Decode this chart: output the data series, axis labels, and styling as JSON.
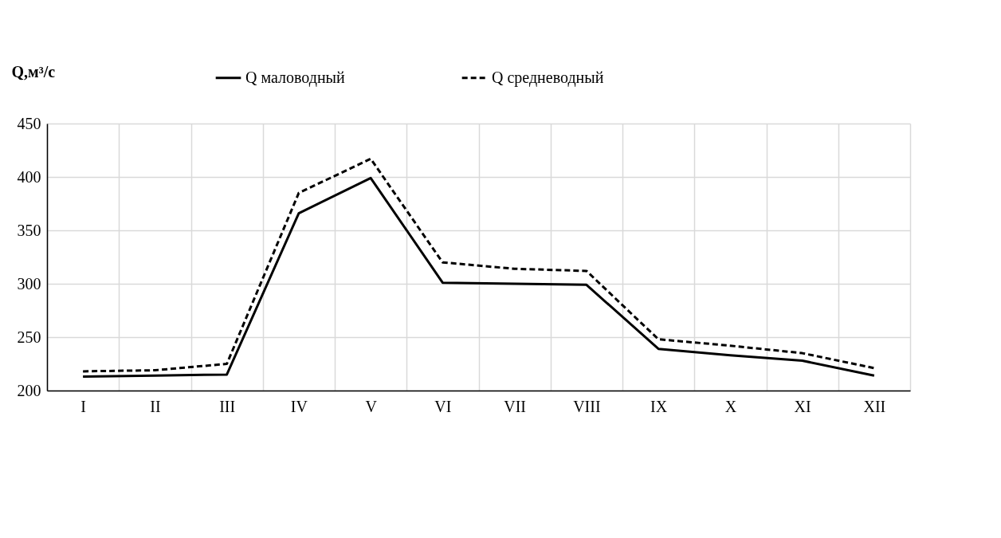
{
  "chart_data": {
    "type": "line",
    "ylabel": "Q,м³/с",
    "categories": [
      "I",
      "II",
      "III",
      "IV",
      "V",
      "VI",
      "VII",
      "VIII",
      "IX",
      "X",
      "XI",
      "XII"
    ],
    "series": [
      {
        "name": "Q маловодный",
        "color": "#000000",
        "line_style": "solid",
        "values": [
          213,
          214,
          215,
          366,
          399,
          301,
          300,
          299,
          239,
          233,
          228,
          214
        ]
      },
      {
        "name": "Q средневодный",
        "color": "#000000",
        "line_style": "dashed",
        "values": [
          218,
          219,
          225,
          385,
          417,
          320,
          314,
          312,
          248,
          242,
          235,
          221
        ]
      }
    ],
    "ylim": [
      200,
      450
    ],
    "yticks": [
      200,
      250,
      300,
      350,
      400,
      450
    ],
    "grid": true,
    "legend": "top"
  }
}
